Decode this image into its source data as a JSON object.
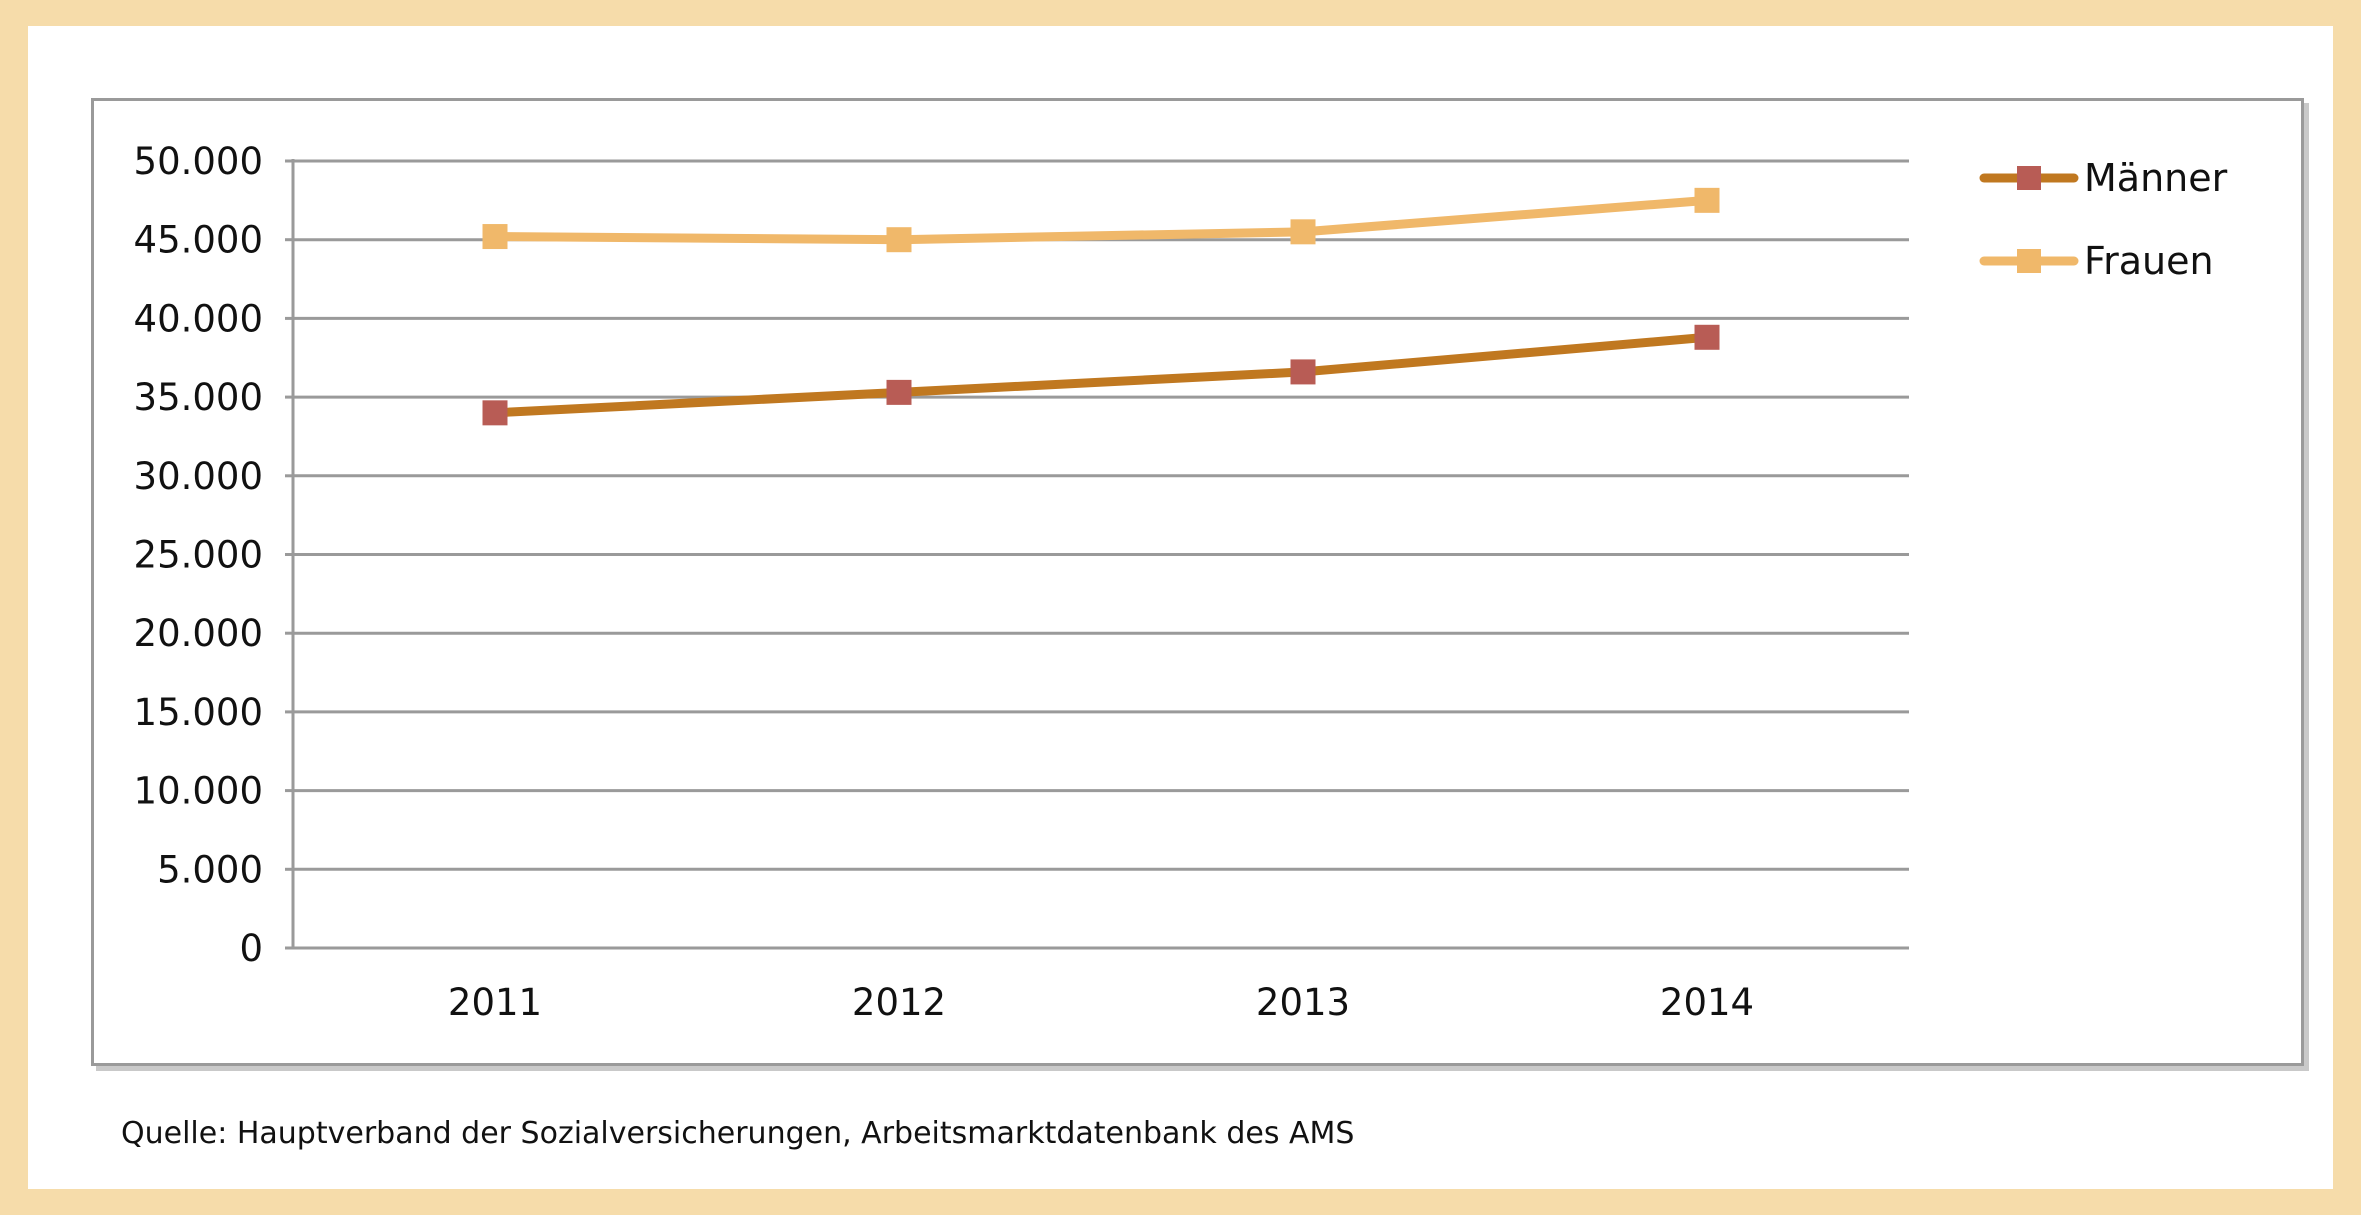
{
  "chart_data": {
    "type": "line",
    "title": "",
    "xlabel": "",
    "ylabel": "",
    "categories": [
      "2011",
      "2012",
      "2013",
      "2014"
    ],
    "ylim": [
      0,
      50000
    ],
    "yticks": [
      0,
      5000,
      10000,
      15000,
      20000,
      25000,
      30000,
      35000,
      40000,
      45000,
      50000
    ],
    "ytick_labels": [
      "0",
      "5.000",
      "10.000",
      "15.000",
      "20.000",
      "25.000",
      "30.000",
      "35.000",
      "40.000",
      "45.000",
      "50.000"
    ],
    "grid": true,
    "legend_position": "right",
    "series": [
      {
        "name": "Männer",
        "values": [
          34000,
          35300,
          36600,
          38800
        ],
        "line_color": "#c07820",
        "marker_color": "#b85c55"
      },
      {
        "name": "Frauen",
        "values": [
          45200,
          45000,
          45500,
          47500
        ],
        "line_color": "#f0b86a",
        "marker_color": "#f0b86a"
      }
    ]
  },
  "source_text": "Quelle: Hauptverband der Sozialversicherungen, Arbeitsmarktdatenbank des AMS"
}
